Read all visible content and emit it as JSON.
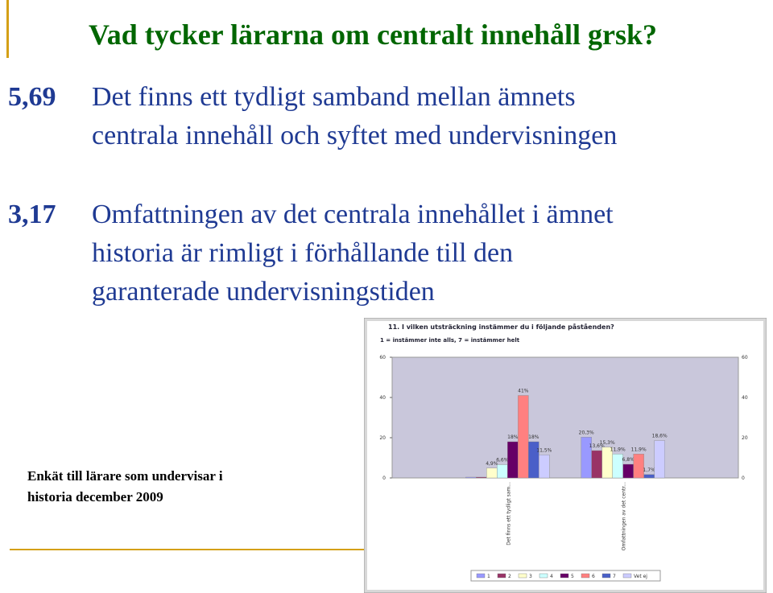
{
  "slide": {
    "title": "Vad tycker lärarna om centralt innehåll grsk?",
    "items": [
      {
        "score": "5,69",
        "lines": [
          "Det finns ett tydligt samband mellan ämnets",
          "centrala innehåll och syftet med undervisningen"
        ]
      },
      {
        "score": "3,17",
        "lines": [
          "Omfattningen av det centrala innehållet i ämnet",
          "historia är rimligt i förhållande till den",
          "garanterade undervisningstiden"
        ]
      }
    ],
    "footnote": [
      "Enkät till lärare som undervisar i",
      "historia december 2009"
    ]
  },
  "chart_data": {
    "type": "bar",
    "title": "11. I vilken utsträckning instämmer du i följande påståenden?",
    "subtitle": "1 = instämmer inte alls, 7 = instämmer helt",
    "categories": [
      "Det finns ett tydligt sam...",
      "Omfattningen av det centr..."
    ],
    "ylim": [
      0,
      60
    ],
    "yticks": [
      0,
      20,
      40,
      60
    ],
    "grid": false,
    "legend": "bottom",
    "series": [
      {
        "name": "1",
        "color": "#9999ff",
        "values": [
          0.4,
          20.3
        ],
        "value_labels": [
          null,
          "20,3%"
        ]
      },
      {
        "name": "2",
        "color": "#993366",
        "values": [
          0.4,
          13.6
        ],
        "value_labels": [
          null,
          "13,6%"
        ]
      },
      {
        "name": "3",
        "color": "#ffffcc",
        "values": [
          4.9,
          15.3
        ],
        "value_labels": [
          "4,9%",
          "15,3%"
        ]
      },
      {
        "name": "4",
        "color": "#ccffff",
        "values": [
          6.6,
          11.9
        ],
        "value_labels": [
          "6,6%",
          "11,9%"
        ]
      },
      {
        "name": "5",
        "color": "#660066",
        "values": [
          18,
          6.8
        ],
        "value_labels": [
          "18%",
          "6,8%"
        ]
      },
      {
        "name": "6",
        "color": "#ff8080",
        "values": [
          41,
          11.9
        ],
        "value_labels": [
          "41%",
          "11,9%"
        ]
      },
      {
        "name": "7",
        "color": "#4a5fc8",
        "values": [
          18,
          1.7
        ],
        "value_labels": [
          "18%",
          "1,7%"
        ]
      },
      {
        "name": "Vet ej",
        "color": "#ccccff",
        "values": [
          11.5,
          18.6
        ],
        "value_labels": [
          "11,5%",
          "18,6%"
        ]
      }
    ]
  }
}
